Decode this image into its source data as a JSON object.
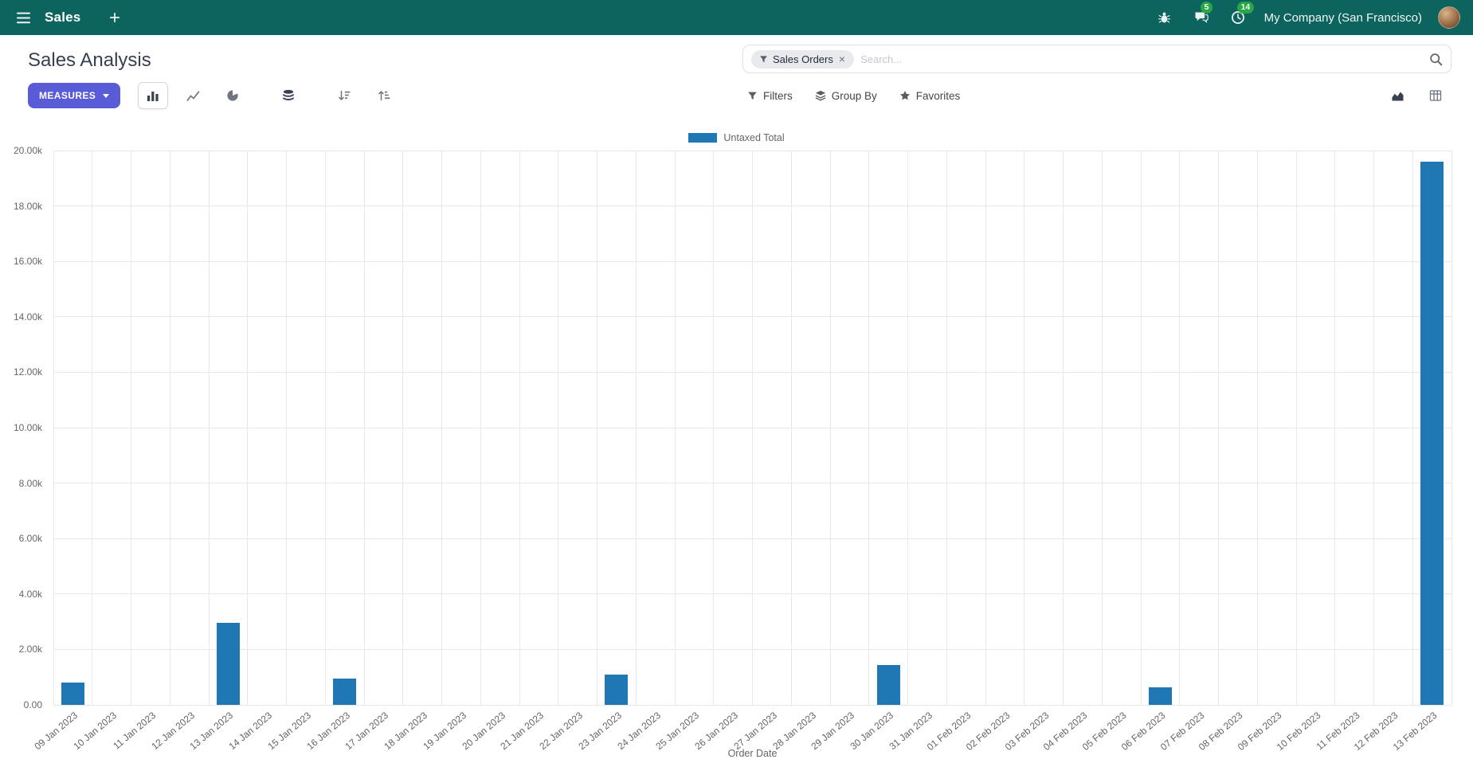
{
  "navbar": {
    "app_name": "Sales",
    "message_count": "5",
    "activity_count": "14",
    "company": "My Company (San Francisco)"
  },
  "control_panel": {
    "title": "Sales Analysis",
    "measures_button": "MEASURES",
    "search": {
      "facet_label": "Sales Orders",
      "facet_remove": "×",
      "placeholder": "Search..."
    },
    "filters_label": "Filters",
    "group_by_label": "Group By",
    "favorites_label": "Favorites"
  },
  "chart_data": {
    "type": "bar",
    "categories": [
      "09 Jan 2023",
      "10 Jan 2023",
      "11 Jan 2023",
      "12 Jan 2023",
      "13 Jan 2023",
      "14 Jan 2023",
      "15 Jan 2023",
      "16 Jan 2023",
      "17 Jan 2023",
      "18 Jan 2023",
      "19 Jan 2023",
      "20 Jan 2023",
      "21 Jan 2023",
      "22 Jan 2023",
      "23 Jan 2023",
      "24 Jan 2023",
      "25 Jan 2023",
      "26 Jan 2023",
      "27 Jan 2023",
      "28 Jan 2023",
      "29 Jan 2023",
      "30 Jan 2023",
      "31 Jan 2023",
      "01 Feb 2023",
      "02 Feb 2023",
      "03 Feb 2023",
      "04 Feb 2023",
      "05 Feb 2023",
      "06 Feb 2023",
      "07 Feb 2023",
      "08 Feb 2023",
      "09 Feb 2023",
      "10 Feb 2023",
      "11 Feb 2023",
      "12 Feb 2023",
      "13 Feb 2023"
    ],
    "series": [
      {
        "name": "Untaxed Total",
        "color": "#1f77b4",
        "values": [
          800,
          0,
          0,
          0,
          2950,
          0,
          0,
          950,
          0,
          0,
          0,
          0,
          0,
          0,
          1080,
          0,
          0,
          0,
          0,
          0,
          0,
          1450,
          0,
          0,
          0,
          0,
          0,
          0,
          640,
          0,
          0,
          0,
          0,
          0,
          0,
          19600
        ]
      }
    ],
    "xlabel": "Order Date",
    "ylabel": "",
    "ylim": [
      0,
      20000
    ],
    "ytick_step": 2000,
    "ytick_labels": [
      "0.00",
      "2.00k",
      "4.00k",
      "6.00k",
      "8.00k",
      "10.00k",
      "12.00k",
      "14.00k",
      "16.00k",
      "18.00k",
      "20.00k"
    ],
    "legend_position": "top",
    "grid": true
  },
  "colors": {
    "navbar_bg": "#0d635e",
    "accent": "#5a5bd6",
    "badge": "#28a745",
    "bar": "#1f77b4"
  }
}
